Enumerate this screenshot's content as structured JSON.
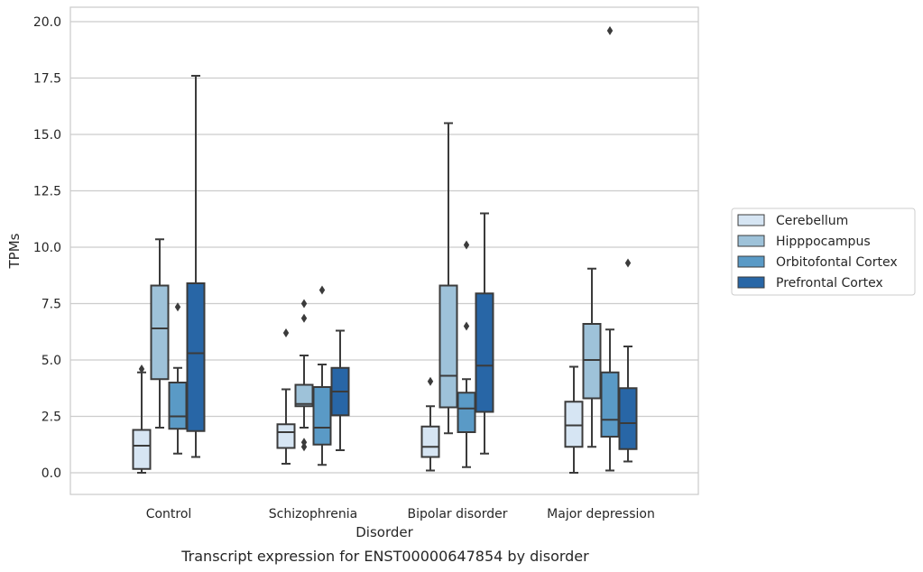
{
  "chart_data": {
    "type": "box",
    "title": "",
    "caption": "Transcript expression for ENST00000647854 by disorder",
    "xlabel": "Disorder",
    "ylabel": "TPMs",
    "ylim": [
      -0.9,
      20.6
    ],
    "yticks": [
      "0.0",
      "2.5",
      "5.0",
      "7.5",
      "10.0",
      "12.5",
      "15.0",
      "17.5",
      "20.0"
    ],
    "grid": "horizontal",
    "legend_position": "right",
    "categories": [
      "Control",
      "Schizophrenia",
      "Bipolar disorder",
      "Major depression"
    ],
    "series": [
      {
        "name": "Cerebellum",
        "color": "#d6e5f3",
        "boxes": [
          {
            "whisker_low": 0.0,
            "q1": 0.17,
            "median": 1.2,
            "q3": 1.9,
            "whisker_high": 4.45,
            "outliers": [
              4.6
            ]
          },
          {
            "whisker_low": 0.4,
            "q1": 1.1,
            "median": 1.8,
            "q3": 2.15,
            "whisker_high": 3.7,
            "outliers": [
              6.2
            ]
          },
          {
            "whisker_low": 0.1,
            "q1": 0.7,
            "median": 1.15,
            "q3": 2.05,
            "whisker_high": 2.95,
            "outliers": [
              4.05
            ]
          },
          {
            "whisker_low": 0.0,
            "q1": 1.15,
            "median": 2.1,
            "q3": 3.15,
            "whisker_high": 4.7,
            "outliers": []
          }
        ]
      },
      {
        "name": "Hipppocampus",
        "color": "#9ec2d9",
        "boxes": [
          {
            "whisker_low": 2.0,
            "q1": 4.15,
            "median": 6.4,
            "q3": 8.3,
            "whisker_high": 10.35,
            "outliers": []
          },
          {
            "whisker_low": 2.0,
            "q1": 2.95,
            "median": 3.05,
            "q3": 3.9,
            "whisker_high": 5.2,
            "outliers": [
              1.15,
              1.35,
              6.85,
              7.5
            ]
          },
          {
            "whisker_low": 1.75,
            "q1": 2.9,
            "median": 4.3,
            "q3": 8.3,
            "whisker_high": 15.5,
            "outliers": []
          },
          {
            "whisker_low": 1.15,
            "q1": 3.3,
            "median": 5.0,
            "q3": 6.6,
            "whisker_high": 9.05,
            "outliers": []
          }
        ]
      },
      {
        "name": "Orbitofontal Cortex",
        "color": "#5a9ac6",
        "boxes": [
          {
            "whisker_low": 0.85,
            "q1": 1.95,
            "median": 2.5,
            "q3": 4.0,
            "whisker_high": 4.65,
            "outliers": [
              7.35
            ]
          },
          {
            "whisker_low": 0.35,
            "q1": 1.25,
            "median": 2.0,
            "q3": 3.8,
            "whisker_high": 4.8,
            "outliers": [
              8.1
            ]
          },
          {
            "whisker_low": 0.25,
            "q1": 1.8,
            "median": 2.85,
            "q3": 3.55,
            "whisker_high": 4.15,
            "outliers": [
              6.5,
              10.1
            ]
          },
          {
            "whisker_low": 0.1,
            "q1": 1.6,
            "median": 2.35,
            "q3": 4.45,
            "whisker_high": 6.35,
            "outliers": [
              19.6
            ]
          }
        ]
      },
      {
        "name": "Prefrontal Cortex",
        "color": "#2866a6",
        "boxes": [
          {
            "whisker_low": 0.7,
            "q1": 1.85,
            "median": 5.3,
            "q3": 8.4,
            "whisker_high": 17.6,
            "outliers": []
          },
          {
            "whisker_low": 1.0,
            "q1": 2.55,
            "median": 3.6,
            "q3": 4.65,
            "whisker_high": 6.3,
            "outliers": []
          },
          {
            "whisker_low": 0.85,
            "q1": 2.7,
            "median": 4.75,
            "q3": 7.95,
            "whisker_high": 11.5,
            "outliers": []
          },
          {
            "whisker_low": 0.5,
            "q1": 1.05,
            "median": 2.2,
            "q3": 3.75,
            "whisker_high": 5.6,
            "outliers": [
              9.3
            ]
          }
        ]
      }
    ]
  }
}
